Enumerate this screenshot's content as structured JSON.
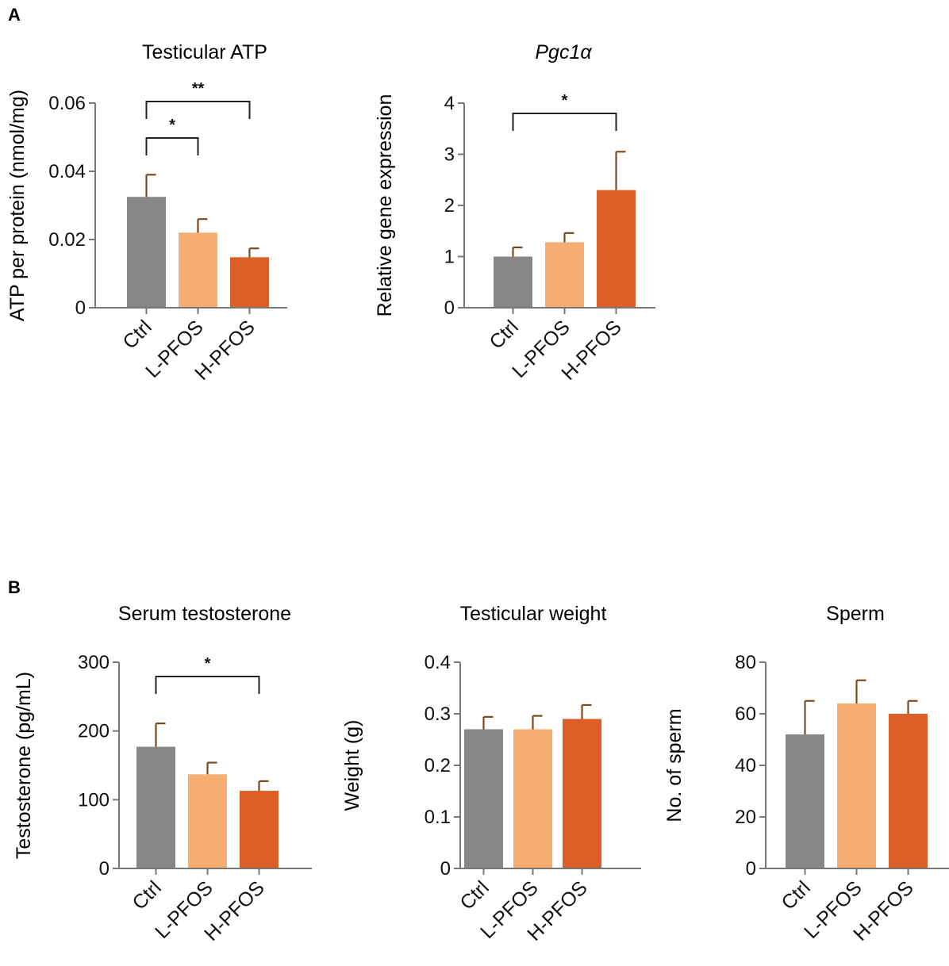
{
  "panels": [
    {
      "label": "A"
    },
    {
      "label": "B"
    }
  ],
  "chart_data": [
    {
      "type": "bar",
      "panel": "A",
      "title": "Testicular ATP",
      "ylabel": "ATP per protein (nmol/mg)",
      "categories": [
        "Ctrl",
        "L-PFOS",
        "H-PFOS"
      ],
      "values": [
        0.0325,
        0.022,
        0.0148
      ],
      "errors": [
        0.0065,
        0.004,
        0.0026
      ],
      "ylim": [
        0,
        0.06
      ],
      "yticks": [
        "0",
        "0.02",
        "0.04",
        "0.06"
      ],
      "ytick_values": [
        0,
        0.02,
        0.04,
        0.06
      ],
      "significance": [
        {
          "from": 0,
          "to": 1,
          "label": "*"
        },
        {
          "from": 0,
          "to": 2,
          "label": "**"
        }
      ]
    },
    {
      "type": "bar",
      "panel": "A",
      "title": "Pgc1α",
      "title_italic": true,
      "ylabel": "Relative gene expression",
      "categories": [
        "Ctrl",
        "L-PFOS",
        "H-PFOS"
      ],
      "values": [
        1.0,
        1.28,
        2.3
      ],
      "errors": [
        0.18,
        0.18,
        0.75
      ],
      "ylim": [
        0,
        4
      ],
      "yticks": [
        "0",
        "1",
        "2",
        "3",
        "4"
      ],
      "ytick_values": [
        0,
        1,
        2,
        3,
        4
      ],
      "significance": [
        {
          "from": 0,
          "to": 2,
          "label": "*"
        }
      ]
    },
    {
      "type": "bar",
      "panel": "B",
      "title": "Serum testosterone",
      "ylabel": "Testosterone (pg/mL)",
      "categories": [
        "Ctrl",
        "L-PFOS",
        "H-PFOS"
      ],
      "values": [
        177,
        137,
        113
      ],
      "errors": [
        34,
        17,
        14
      ],
      "ylim": [
        0,
        300
      ],
      "yticks": [
        "0",
        "100",
        "200",
        "300"
      ],
      "ytick_values": [
        0,
        100,
        200,
        300
      ],
      "significance": [
        {
          "from": 0,
          "to": 2,
          "label": "*"
        }
      ]
    },
    {
      "type": "bar",
      "panel": "B",
      "title": "Testicular weight",
      "ylabel": "Weight (g)",
      "categories": [
        "Ctrl",
        "L-PFOS",
        "H-PFOS"
      ],
      "values": [
        0.27,
        0.27,
        0.29
      ],
      "errors": [
        0.024,
        0.026,
        0.027
      ],
      "ylim": [
        0,
        0.4
      ],
      "yticks": [
        "0",
        "0.1",
        "0.2",
        "0.3",
        "0.4"
      ],
      "ytick_values": [
        0,
        0.1,
        0.2,
        0.3,
        0.4
      ],
      "significance": []
    },
    {
      "type": "bar",
      "panel": "B",
      "title": "Sperm",
      "ylabel": "No. of sperm",
      "categories": [
        "Ctrl",
        "L-PFOS",
        "H-PFOS"
      ],
      "values": [
        52,
        64,
        60
      ],
      "errors": [
        13,
        9,
        5
      ],
      "ylim": [
        0,
        80
      ],
      "yticks": [
        "0",
        "20",
        "40",
        "60",
        "80"
      ],
      "ytick_values": [
        0,
        20,
        40,
        60,
        80
      ],
      "significance": []
    }
  ],
  "colors": {
    "ctrl": "#878787",
    "low": "#f6ae72",
    "high": "#dc5f27",
    "axis": "#777777",
    "error": "#7a4a1c",
    "text": "#111111"
  }
}
